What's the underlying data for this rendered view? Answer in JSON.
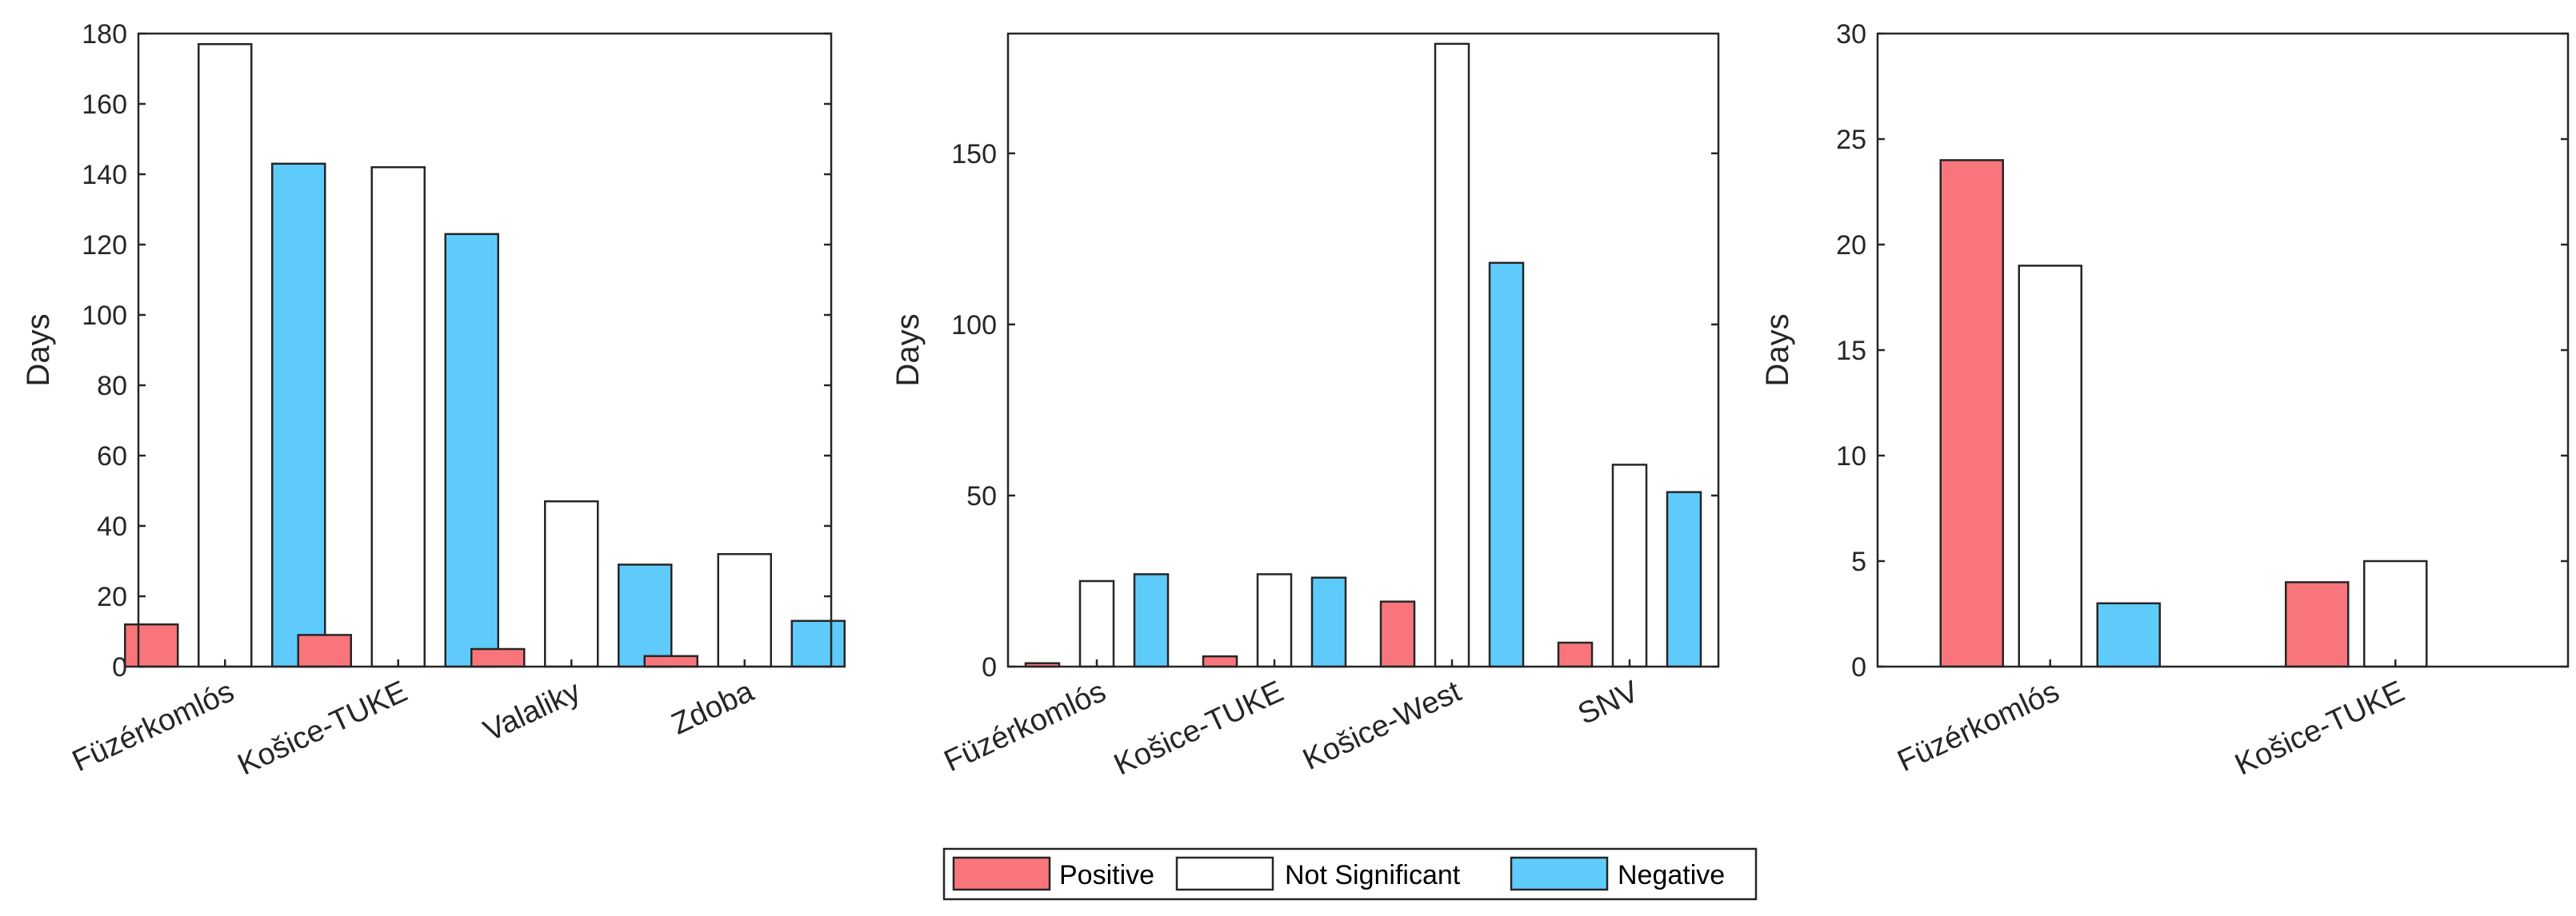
{
  "colors": {
    "positive": "#f8767b",
    "not_significant": "#ffffff",
    "negative": "#5ecbfb",
    "axis": "#262626"
  },
  "legend": {
    "items": [
      {
        "label": "Positive",
        "color": "#f8767b"
      },
      {
        "label": "Not Significant",
        "color": "#ffffff"
      },
      {
        "label": "Negative",
        "color": "#5ecbfb"
      }
    ]
  },
  "chart_data": [
    {
      "type": "bar",
      "ylabel": "Days",
      "ylim": [
        0,
        180
      ],
      "yticks": [
        0,
        20,
        40,
        60,
        80,
        100,
        120,
        140,
        160,
        180
      ],
      "categories": [
        "Füzérkomlós",
        "Košice-TUKE",
        "Valaliky",
        "Zdoba"
      ],
      "series": [
        {
          "name": "Positive",
          "values": [
            12,
            9,
            5,
            3
          ]
        },
        {
          "name": "Not Significant",
          "values": [
            177,
            142,
            47,
            32
          ]
        },
        {
          "name": "Negative",
          "values": [
            143,
            123,
            29,
            13
          ]
        }
      ]
    },
    {
      "type": "bar",
      "ylabel": "Days",
      "ylim": [
        0,
        185
      ],
      "yticks": [
        0,
        50,
        100,
        150
      ],
      "categories": [
        "Füzérkomlós",
        "Košice-TUKE",
        "Košice-West",
        "SNV"
      ],
      "series": [
        {
          "name": "Positive",
          "values": [
            1,
            3,
            19,
            7
          ]
        },
        {
          "name": "Not Significant",
          "values": [
            25,
            27,
            182,
            59
          ]
        },
        {
          "name": "Negative",
          "values": [
            27,
            26,
            118,
            51
          ]
        }
      ]
    },
    {
      "type": "bar",
      "ylabel": "Days",
      "ylim": [
        0,
        30
      ],
      "yticks": [
        0,
        5,
        10,
        15,
        20,
        25,
        30
      ],
      "categories": [
        "Füzérkomlós",
        "Košice-TUKE"
      ],
      "series": [
        {
          "name": "Positive",
          "values": [
            24,
            4
          ]
        },
        {
          "name": "Not Significant",
          "values": [
            19,
            5
          ]
        },
        {
          "name": "Negative",
          "values": [
            3,
            0
          ]
        }
      ]
    }
  ]
}
